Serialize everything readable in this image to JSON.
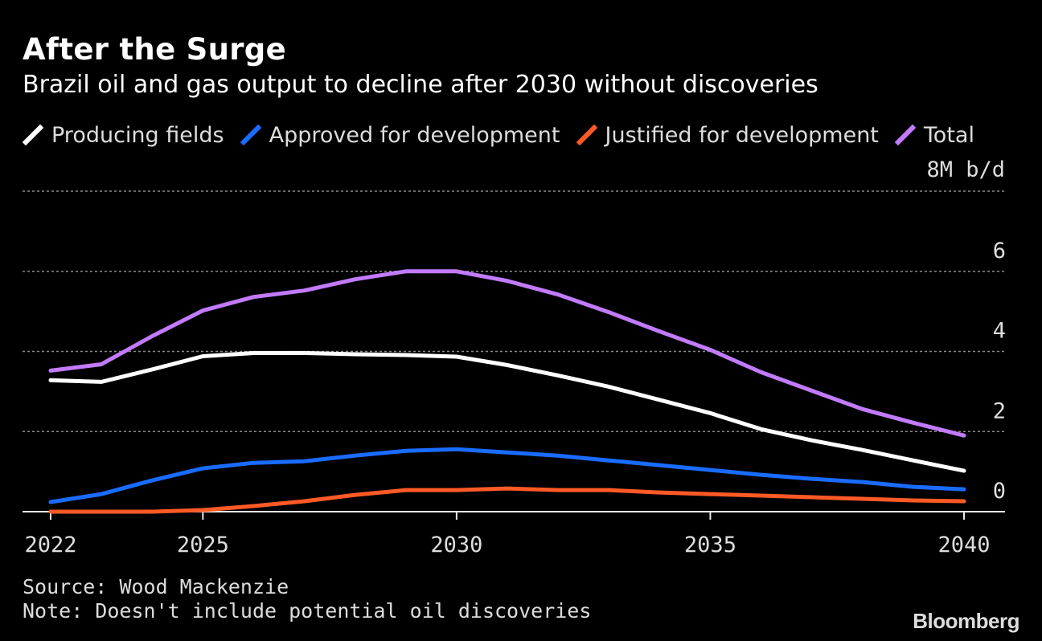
{
  "header": {
    "title": "After the Surge",
    "subtitle": "Brazil oil and gas output to decline after 2030 without discoveries"
  },
  "legend": {
    "items": [
      {
        "label": "Producing fields",
        "color": "#ffffff"
      },
      {
        "label": "Approved for development",
        "color": "#1a6cff"
      },
      {
        "label": "Justified for development",
        "color": "#ff5a26"
      },
      {
        "label": "Total",
        "color": "#c27bff"
      }
    ]
  },
  "footer": {
    "source": "Source: Wood Mackenzie",
    "note": "Note: Doesn't include potential oil discoveries",
    "brand": "Bloomberg"
  },
  "chart_data": {
    "type": "line",
    "title": "After the Surge",
    "subtitle": "Brazil oil and gas output to decline after 2030 without discoveries",
    "unit_label": "8M b/d",
    "x": [
      2022,
      2023,
      2024,
      2025,
      2026,
      2027,
      2028,
      2029,
      2030,
      2031,
      2032,
      2033,
      2034,
      2035,
      2036,
      2037,
      2038,
      2039,
      2040
    ],
    "x_ticks": [
      "2022",
      "2025",
      "2030",
      "2035",
      "2040"
    ],
    "y_ticks": [
      "0",
      "2",
      "4",
      "6"
    ],
    "ylim": [
      0,
      8
    ],
    "grid": true,
    "legend_position": "top",
    "series": [
      {
        "name": "Producing fields",
        "color": "#ffffff",
        "values": [
          3.28,
          3.24,
          3.55,
          3.88,
          3.96,
          3.96,
          3.93,
          3.91,
          3.87,
          3.66,
          3.4,
          3.12,
          2.79,
          2.46,
          2.06,
          1.78,
          1.54,
          1.28,
          1.02
        ]
      },
      {
        "name": "Approved for development",
        "color": "#1a6cff",
        "values": [
          0.24,
          0.44,
          0.78,
          1.08,
          1.22,
          1.26,
          1.4,
          1.52,
          1.56,
          1.48,
          1.4,
          1.28,
          1.16,
          1.04,
          0.92,
          0.82,
          0.74,
          0.62,
          0.56
        ]
      },
      {
        "name": "Justified for development",
        "color": "#ff5a26",
        "values": [
          0.0,
          0.0,
          0.0,
          0.04,
          0.14,
          0.26,
          0.42,
          0.54,
          0.54,
          0.58,
          0.54,
          0.54,
          0.48,
          0.44,
          0.4,
          0.36,
          0.32,
          0.28,
          0.26
        ]
      },
      {
        "name": "Total",
        "color": "#c27bff",
        "values": [
          3.52,
          3.68,
          4.38,
          5.02,
          5.36,
          5.52,
          5.8,
          6.0,
          6.0,
          5.76,
          5.42,
          4.98,
          4.5,
          4.04,
          3.48,
          3.02,
          2.56,
          2.22,
          1.9
        ]
      }
    ]
  }
}
